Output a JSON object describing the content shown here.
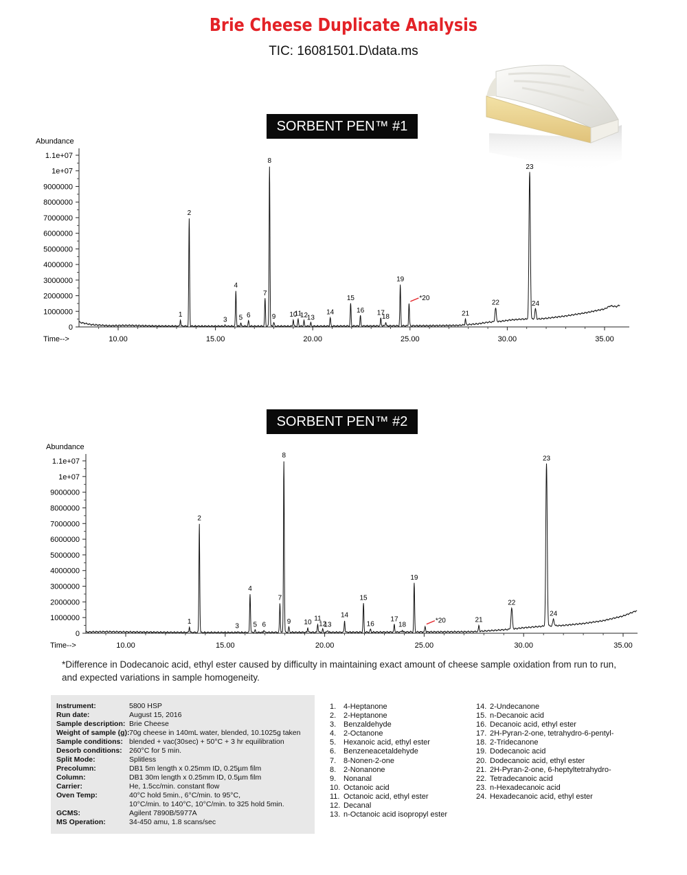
{
  "header": {
    "title": "Brie Cheese Duplicate Analysis",
    "subtitle": "TIC: 16081501.D\\data.ms"
  },
  "colors": {
    "title": "#e32227",
    "trace": "#111111",
    "marker20": "#e32227",
    "label_bg": "#0a0a0a",
    "info_bg": "#e8e8e8"
  },
  "chart_data": [
    {
      "type": "line",
      "title": "SORBENT PEN™ #1",
      "ylabel": "Abundance",
      "xlabel": "Time-->",
      "xlim": [
        8.0,
        35.8
      ],
      "ylim": [
        0,
        11000000
      ],
      "xticks": [
        10.0,
        15.0,
        20.0,
        25.0,
        30.0,
        35.0
      ],
      "xtick_labels": [
        "10.00",
        "15.00",
        "20.00",
        "25.00",
        "30.00",
        "35.00"
      ],
      "yticks": [
        0,
        1000000,
        2000000,
        3000000,
        4000000,
        5000000,
        6000000,
        7000000,
        8000000,
        9000000,
        10000000,
        11000000
      ],
      "ytick_labels": [
        "0",
        "1000000",
        "2000000",
        "3000000",
        "4000000",
        "5000000",
        "6000000",
        "7000000",
        "8000000",
        "9000000",
        "1e+07",
        "1.1e+07"
      ],
      "baseline": [
        [
          8.0,
          300000
        ],
        [
          8.6,
          150000
        ],
        [
          9.5,
          80000
        ],
        [
          10.5,
          100000
        ],
        [
          12.0,
          60000
        ],
        [
          14.0,
          50000
        ],
        [
          16.0,
          50000
        ],
        [
          18.0,
          50000
        ],
        [
          20.0,
          50000
        ],
        [
          22.0,
          60000
        ],
        [
          24.0,
          70000
        ],
        [
          26.0,
          80000
        ],
        [
          27.5,
          100000
        ],
        [
          28.5,
          200000
        ],
        [
          29.0,
          300000
        ],
        [
          29.6,
          350000
        ],
        [
          30.2,
          450000
        ],
        [
          30.8,
          500000
        ],
        [
          31.5,
          500000
        ],
        [
          32.0,
          550000
        ],
        [
          33.0,
          700000
        ],
        [
          34.0,
          900000
        ],
        [
          35.0,
          1150000
        ],
        [
          35.3,
          1350000
        ],
        [
          35.6,
          1300000
        ],
        [
          35.8,
          1400000
        ]
      ],
      "peaks": [
        {
          "label": "1",
          "x": 13.2,
          "y": 450000
        },
        {
          "label": "2",
          "x": 13.65,
          "y": 6950000
        },
        {
          "label": "3",
          "x": 15.5,
          "y": 100000
        },
        {
          "label": "4",
          "x": 16.05,
          "y": 2300000
        },
        {
          "label": "5",
          "x": 16.3,
          "y": 250000
        },
        {
          "label": "6",
          "x": 16.7,
          "y": 400000
        },
        {
          "label": "7",
          "x": 17.55,
          "y": 1800000
        },
        {
          "label": "8",
          "x": 17.78,
          "y": 10300000
        },
        {
          "label": "9",
          "x": 18.0,
          "y": 300000
        },
        {
          "label": "10",
          "x": 19.0,
          "y": 450000
        },
        {
          "label": "11",
          "x": 19.25,
          "y": 500000
        },
        {
          "label": "12",
          "x": 19.55,
          "y": 400000
        },
        {
          "label": "13",
          "x": 19.9,
          "y": 250000
        },
        {
          "label": "14",
          "x": 20.9,
          "y": 600000
        },
        {
          "label": "15",
          "x": 21.95,
          "y": 1500000
        },
        {
          "label": "16",
          "x": 22.45,
          "y": 700000
        },
        {
          "label": "17",
          "x": 23.5,
          "y": 550000
        },
        {
          "label": "18",
          "x": 23.75,
          "y": 300000
        },
        {
          "label": "19",
          "x": 24.5,
          "y": 2700000
        },
        {
          "label": "*20",
          "x": 24.95,
          "y": 1500000
        },
        {
          "label": "21",
          "x": 27.85,
          "y": 500000
        },
        {
          "label": "22",
          "x": 29.4,
          "y": 1200000
        },
        {
          "label": "23",
          "x": 31.15,
          "y": 9900000
        },
        {
          "label": "24",
          "x": 31.45,
          "y": 1150000
        }
      ]
    },
    {
      "type": "line",
      "title": "SORBENT PEN™ #2",
      "ylabel": "Abundance",
      "xlabel": "Time-->",
      "xlim": [
        8.0,
        35.7
      ],
      "ylim": [
        0,
        11000000
      ],
      "xticks": [
        10.0,
        15.0,
        20.0,
        25.0,
        30.0,
        35.0
      ],
      "xtick_labels": [
        "10.00",
        "15.00",
        "20.00",
        "25.00",
        "30.00",
        "35.00"
      ],
      "yticks": [
        0,
        1000000,
        2000000,
        3000000,
        4000000,
        5000000,
        6000000,
        7000000,
        8000000,
        9000000,
        10000000,
        11000000
      ],
      "ytick_labels": [
        "0",
        "1000000",
        "2000000",
        "3000000",
        "4000000",
        "5000000",
        "6000000",
        "7000000",
        "8000000",
        "9000000",
        "1e+07",
        "1.1e+07"
      ],
      "baseline": [
        [
          8.0,
          80000
        ],
        [
          9.0,
          100000
        ],
        [
          10.5,
          80000
        ],
        [
          12.0,
          60000
        ],
        [
          14.0,
          50000
        ],
        [
          16.0,
          50000
        ],
        [
          18.0,
          60000
        ],
        [
          20.0,
          60000
        ],
        [
          22.0,
          70000
        ],
        [
          24.0,
          80000
        ],
        [
          26.0,
          90000
        ],
        [
          27.5,
          100000
        ],
        [
          28.5,
          180000
        ],
        [
          29.3,
          250000
        ],
        [
          30.0,
          350000
        ],
        [
          31.0,
          450000
        ],
        [
          32.0,
          500000
        ],
        [
          33.0,
          620000
        ],
        [
          34.0,
          800000
        ],
        [
          35.0,
          1100000
        ],
        [
          35.7,
          1450000
        ]
      ],
      "peaks": [
        {
          "label": "1",
          "x": 13.2,
          "y": 400000
        },
        {
          "label": "2",
          "x": 13.7,
          "y": 7000000
        },
        {
          "label": "3",
          "x": 15.6,
          "y": 100000
        },
        {
          "label": "4",
          "x": 16.25,
          "y": 2500000
        },
        {
          "label": "5",
          "x": 16.5,
          "y": 200000
        },
        {
          "label": "6",
          "x": 16.95,
          "y": 200000
        },
        {
          "label": "7",
          "x": 17.75,
          "y": 1900000
        },
        {
          "label": "8",
          "x": 17.95,
          "y": 11000000
        },
        {
          "label": "9",
          "x": 18.2,
          "y": 400000
        },
        {
          "label": "10",
          "x": 19.15,
          "y": 350000
        },
        {
          "label": "11",
          "x": 19.65,
          "y": 600000
        },
        {
          "label": "12",
          "x": 19.9,
          "y": 250000
        },
        {
          "label": "13",
          "x": 20.15,
          "y": 200000
        },
        {
          "label": "14",
          "x": 21.0,
          "y": 800000
        },
        {
          "label": "15",
          "x": 21.95,
          "y": 1900000
        },
        {
          "label": "16",
          "x": 22.3,
          "y": 250000
        },
        {
          "label": "17",
          "x": 23.5,
          "y": 550000
        },
        {
          "label": "18",
          "x": 23.9,
          "y": 200000
        },
        {
          "label": "19",
          "x": 24.5,
          "y": 3200000
        },
        {
          "label": "*20",
          "x": 25.05,
          "y": 450000
        },
        {
          "label": "21",
          "x": 27.75,
          "y": 500000
        },
        {
          "label": "22",
          "x": 29.4,
          "y": 1600000
        },
        {
          "label": "23",
          "x": 31.15,
          "y": 10800000
        },
        {
          "label": "24",
          "x": 31.5,
          "y": 900000
        }
      ]
    }
  ],
  "footnote": {
    "line1": "*Difference in Dodecanoic acid, ethyl ester caused by difficulty in maintaining exact amount of cheese sample oxidation from run to run,",
    "line2": "and expected variations in sample homogeneity."
  },
  "instrument_info": [
    {
      "key": "Instrument:",
      "value": "5800 HSP"
    },
    {
      "key": "Run date:",
      "value": "August 15, 2016"
    },
    {
      "key": "Sample description:",
      "value": "Brie Cheese"
    },
    {
      "key": "Weight of sample (g):",
      "value": "70g cheese in 140mL water, blended, 10.1025g taken"
    },
    {
      "key": "Sample conditions:",
      "value": "blended + vac(30sec) + 50°C + 3 hr equilibration"
    },
    {
      "key": "Desorb conditions:",
      "value": "260°C for 5 min."
    },
    {
      "key": "Split Mode:",
      "value": "Splitless"
    },
    {
      "key": "Precolumn:",
      "value": "DB1 5m length x 0.25mm ID, 0.25µm film"
    },
    {
      "key": "Column:",
      "value": "DB1 30m length x 0.25mm ID, 0.5µm film"
    },
    {
      "key": "Carrier:",
      "value": "He, 1.5cc/min. constant flow"
    },
    {
      "key": "Oven Temp:",
      "value": "40°C hold 5min., 6°C/min. to 95°C,"
    },
    {
      "key": "",
      "value": "10°C/min. to 140°C, 10°C/min. to 325 hold 5min."
    },
    {
      "key": "GCMS:",
      "value": "Agilent 7890B/5977A"
    },
    {
      "key": "MS Operation:",
      "value": "34-450 amu, 1.8 scans/sec"
    }
  ],
  "compounds_left": [
    {
      "num": "1.",
      "name": "4-Heptanone"
    },
    {
      "num": "2.",
      "name": "2-Heptanone"
    },
    {
      "num": "3.",
      "name": "Benzaldehyde"
    },
    {
      "num": "4.",
      "name": "2-Octanone"
    },
    {
      "num": "5.",
      "name": "Hexanoic acid, ethyl ester"
    },
    {
      "num": "6.",
      "name": "Benzeneacetaldehyde"
    },
    {
      "num": "7.",
      "name": "8-Nonen-2-one"
    },
    {
      "num": "8.",
      "name": "2-Nonanone"
    },
    {
      "num": "9.",
      "name": "Nonanal"
    },
    {
      "num": "10.",
      "name": "Octanoic acid"
    },
    {
      "num": "11.",
      "name": "Octanoic acid, ethyl ester"
    },
    {
      "num": "12.",
      "name": "Decanal"
    },
    {
      "num": "13.",
      "name": "n-Octanoic acid isopropyl ester"
    }
  ],
  "compounds_right": [
    {
      "num": "14.",
      "name": "2-Undecanone"
    },
    {
      "num": "15.",
      "name": "n-Decanoic acid"
    },
    {
      "num": "16.",
      "name": "Decanoic acid, ethyl ester"
    },
    {
      "num": "17.",
      "name": "2H-Pyran-2-one, tetrahydro-6-pentyl-"
    },
    {
      "num": "18.",
      "name": "2-Tridecanone"
    },
    {
      "num": "19.",
      "name": "Dodecanoic acid"
    },
    {
      "num": "20.",
      "name": "Dodecanoic acid, ethyl ester"
    },
    {
      "num": "21.",
      "name": "2H-Pyran-2-one, 6-heptyltetrahydro-"
    },
    {
      "num": "22.",
      "name": "Tetradecanoic acid"
    },
    {
      "num": "23.",
      "name": "n-Hexadecanoic acid"
    },
    {
      "num": "24.",
      "name": "Hexadecanoic acid, ethyl ester"
    }
  ]
}
